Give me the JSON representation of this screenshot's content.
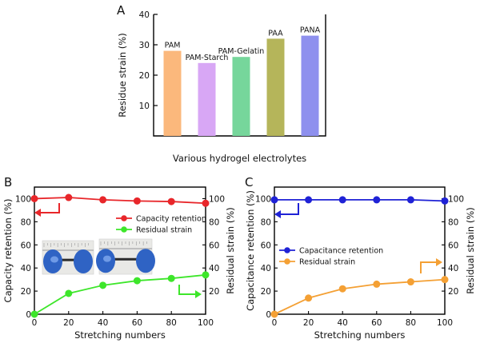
{
  "chart_data": [
    {
      "panel": "A",
      "type": "bar",
      "categories": [
        "PAM",
        "PAM-Starch",
        "PAM-Gelatin",
        "PAA",
        "PANA"
      ],
      "values": [
        28,
        24,
        26,
        32,
        33
      ],
      "colors": [
        "#fbb87c",
        "#d8a7f5",
        "#76d69b",
        "#b5b55a",
        "#8e90ee"
      ],
      "xlabel": "Various hydrogel electrolytes",
      "ylabel": "Residue strain (%)",
      "ylim": [
        0,
        40
      ],
      "yticks": [
        10,
        20,
        30,
        40
      ],
      "grid": false
    },
    {
      "panel": "B",
      "type": "line",
      "x": [
        0,
        20,
        40,
        60,
        80,
        100
      ],
      "xticks": [
        0,
        20,
        40,
        60,
        80,
        100
      ],
      "xlabel": "Stretching numbers",
      "ylabel": "Capacity retention (%)",
      "ylabel_right": "Residual strain (%)",
      "ylim": [
        0,
        110
      ],
      "yticks": [
        0,
        20,
        40,
        60,
        80,
        100
      ],
      "yticks_right": [
        20,
        40,
        60,
        80,
        100
      ],
      "legend_position": "center-right",
      "series": [
        {
          "name": "Capacity retention",
          "axis": "left",
          "color": "#e8262a",
          "values": [
            100,
            101,
            99,
            98,
            97.5,
            96
          ]
        },
        {
          "name": "Residual strain",
          "axis": "right",
          "color": "#3de62a",
          "values": [
            0,
            18,
            25,
            29,
            31,
            34
          ]
        }
      ],
      "inset": "photo of hydrogel strip held by gloved hands, relaxed and stretched"
    },
    {
      "panel": "C",
      "type": "line",
      "x": [
        0,
        20,
        40,
        60,
        80,
        100
      ],
      "xticks": [
        0,
        20,
        40,
        60,
        80,
        100
      ],
      "xlabel": "Stretching numbers",
      "ylabel": "Capacitance retention (%)",
      "ylabel_right": "Residual strain (%)",
      "ylim": [
        0,
        110
      ],
      "yticks": [
        0,
        20,
        40,
        60,
        80,
        100
      ],
      "yticks_right": [
        20,
        40,
        60,
        80,
        100
      ],
      "legend_position": "center-left",
      "series": [
        {
          "name": "Capacitance retention",
          "axis": "left",
          "color": "#1f22d6",
          "values": [
            99,
            99,
            99,
            99,
            99,
            98
          ]
        },
        {
          "name": "Residual strain",
          "axis": "right",
          "color": "#f4a034",
          "values": [
            0,
            14,
            22,
            26,
            28,
            30
          ]
        }
      ]
    }
  ]
}
